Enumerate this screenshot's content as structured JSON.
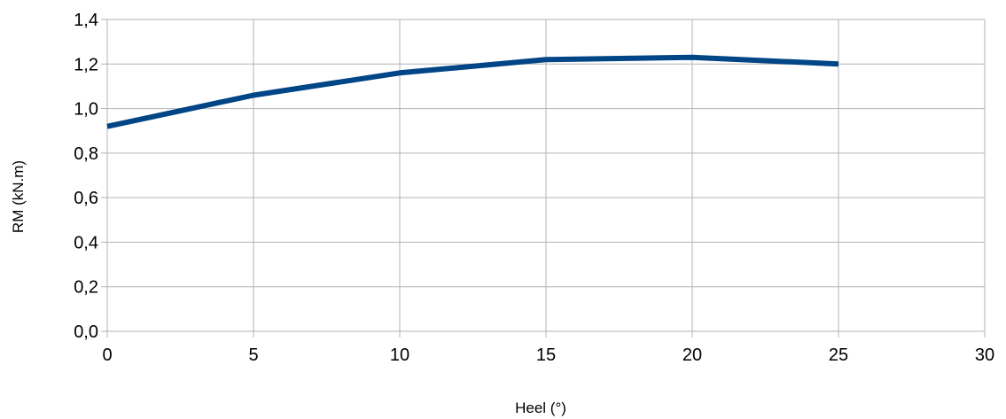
{
  "chart_data": {
    "type": "line",
    "title": "",
    "xlabel": "Heel (°)",
    "ylabel": "RM (kN.m)",
    "xlim": [
      0,
      30
    ],
    "ylim": [
      0,
      1.4
    ],
    "x_ticks": [
      "0",
      "5",
      "10",
      "15",
      "20",
      "25",
      "30"
    ],
    "x_tick_values": [
      0,
      5,
      10,
      15,
      20,
      25,
      30
    ],
    "y_ticks": [
      "0,0",
      "0,2",
      "0,4",
      "0,6",
      "0,8",
      "1,0",
      "1,2",
      "1,4"
    ],
    "y_tick_values": [
      0,
      0.2,
      0.4,
      0.6,
      0.8,
      1.0,
      1.2,
      1.4
    ],
    "grid": true,
    "legend": "none",
    "series": [
      {
        "color": "#004586",
        "x": [
          0,
          5,
          10,
          15,
          20,
          25
        ],
        "y": [
          0.92,
          1.06,
          1.16,
          1.22,
          1.23,
          1.2
        ]
      }
    ]
  }
}
